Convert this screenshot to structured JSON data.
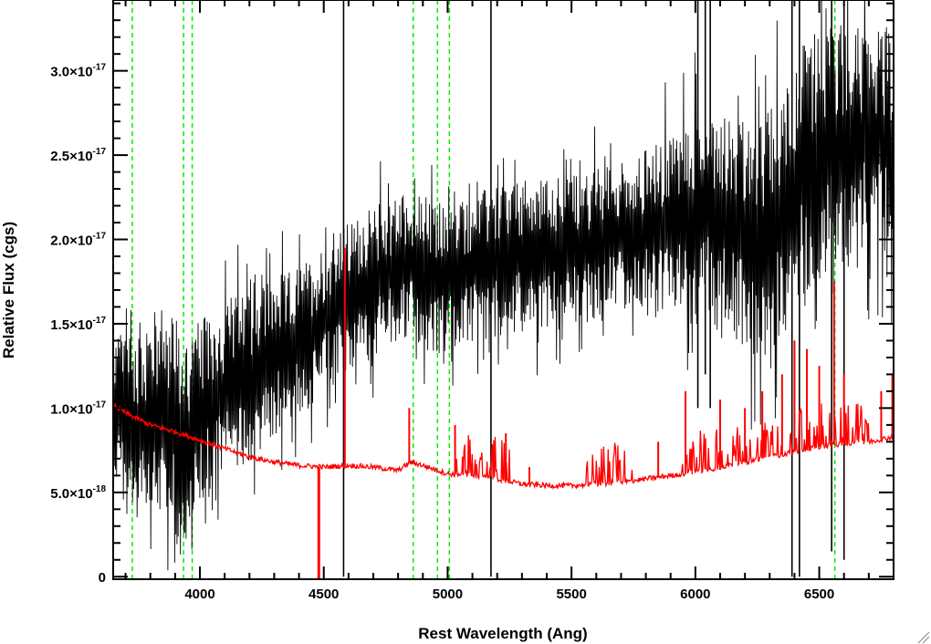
{
  "chart_data": {
    "type": "line",
    "title": "",
    "xlabel": "Rest Wavelength (Ang)",
    "ylabel": "Relative Flux (cgs)",
    "xlim": [
      3650,
      6800
    ],
    "ylim": [
      -1.5e-19,
      3.42e-17
    ],
    "x_ticks": [
      4000,
      4500,
      5000,
      5500,
      6000,
      6500
    ],
    "x_tick_labels": [
      "4000",
      "4500",
      "5000",
      "5500",
      "6000",
      "6500"
    ],
    "y_ticks": [
      {
        "value": 0,
        "base": "0",
        "exp": ""
      },
      {
        "value": 5e-18,
        "base": "5.0×10",
        "exp": "-18"
      },
      {
        "value": 1e-17,
        "base": "1.0×10",
        "exp": "-17"
      },
      {
        "value": 1.5e-17,
        "base": "1.5×10",
        "exp": "-17"
      },
      {
        "value": 2e-17,
        "base": "2.0×10",
        "exp": "-17"
      },
      {
        "value": 2.5e-17,
        "base": "2.5×10",
        "exp": "-17"
      },
      {
        "value": 3e-17,
        "base": "3.0×10",
        "exp": "-17"
      }
    ],
    "reference_lines": {
      "color": "#00ee00",
      "style": "dashed",
      "x": [
        3727,
        3934,
        3969,
        4861,
        4959,
        5007,
        6563
      ]
    },
    "series": [
      {
        "color": "#000000",
        "style": "noisy spectrum",
        "x": [
          3650,
          3750,
          3850,
          3950,
          4050,
          4150,
          4250,
          4350,
          4450,
          4550,
          4650,
          4750,
          4850,
          4950,
          5050,
          5150,
          5250,
          5350,
          5450,
          5550,
          5650,
          5750,
          5850,
          5950,
          6050,
          6150,
          6250,
          6350,
          6450,
          6550,
          6650,
          6750,
          6800
        ],
        "y": [
          1e-17,
          9e-18,
          9.5e-18,
          8e-18,
          1.05e-17,
          1.15e-17,
          1.25e-17,
          1.35e-17,
          1.45e-17,
          1.6e-17,
          1.7e-17,
          1.8e-17,
          1.85e-17,
          1.75e-17,
          1.8e-17,
          1.85e-17,
          1.9e-17,
          1.9e-17,
          1.95e-17,
          1.95e-17,
          2e-17,
          2.05e-17,
          2.05e-17,
          2.1e-17,
          2.15e-17,
          2.1e-17,
          1.9e-17,
          2.2e-17,
          2.45e-17,
          2.55e-17,
          2.6e-17,
          2.6e-17,
          2.55e-17
        ],
        "noise": [
          3e-18,
          4e-18,
          4.5e-18,
          4.5e-18,
          3.5e-18,
          3.5e-18,
          3.5e-18,
          3e-18,
          3e-18,
          3e-18,
          3e-18,
          3e-18,
          3e-18,
          3e-18,
          3e-18,
          3e-18,
          3e-18,
          3e-18,
          3e-18,
          3e-18,
          3e-18,
          3e-18,
          3.5e-18,
          4e-18,
          4.5e-18,
          4.5e-18,
          5e-18,
          5e-18,
          5e-18,
          5e-18,
          4.5e-18,
          4.5e-18,
          4.5e-18
        ],
        "spikes_x": [
          4580,
          5175,
          6010,
          6040,
          6060,
          6390,
          6420,
          6550,
          6600
        ],
        "spikes_y_high": [
          3.42e-17,
          3.42e-17,
          3.42e-17,
          3.42e-17,
          3.42e-17,
          3.42e-17,
          3.42e-17,
          3.42e-17,
          3.42e-17
        ],
        "spikes_y_low": [
          0,
          0,
          1e-17,
          1.2e-17,
          1e-17,
          0,
          0,
          1.5e-18,
          1e-18
        ]
      },
      {
        "color": "#ff0000",
        "style": "error spectrum",
        "x": [
          3650,
          3700,
          3800,
          3900,
          4000,
          4100,
          4200,
          4300,
          4400,
          4500,
          4600,
          4700,
          4800,
          4850,
          4900,
          5000,
          5100,
          5200,
          5300,
          5400,
          5500,
          5600,
          5700,
          5800,
          5900,
          6000,
          6100,
          6200,
          6300,
          6400,
          6500,
          6600,
          6700,
          6800
        ],
        "y": [
          1.02e-17,
          9.7e-18,
          9e-18,
          8.6e-18,
          8.1e-18,
          7.6e-18,
          7.1e-18,
          6.8e-18,
          6.6e-18,
          6.5e-18,
          6.6e-18,
          6.5e-18,
          6.3e-18,
          6.8e-18,
          6.6e-18,
          6.1e-18,
          6e-18,
          5.8e-18,
          5.5e-18,
          5.4e-18,
          5.4e-18,
          5.5e-18,
          5.6e-18,
          5.8e-18,
          6e-18,
          6.2e-18,
          6.5e-18,
          6.8e-18,
          7.1e-18,
          7.4e-18,
          7.7e-18,
          7.9e-18,
          8e-18,
          8.3e-18
        ],
        "emission_x": [
          3650,
          4585,
          4845,
          5030,
          5235,
          5330,
          5850,
          5960,
          6100,
          6200,
          6270,
          6350,
          6400,
          6450,
          6500,
          6560,
          6600,
          6750,
          6795
        ],
        "emission_y": [
          1.4e-17,
          1.95e-17,
          1e-17,
          9e-18,
          8.5e-18,
          6.5e-18,
          8e-18,
          1.1e-17,
          1.05e-17,
          1e-17,
          1.1e-17,
          1.2e-17,
          1.4e-17,
          1.35e-17,
          1.25e-17,
          1.75e-17,
          1.2e-17,
          1.1e-17,
          1.2e-17
        ],
        "absorption_x": [
          4480
        ],
        "absorption_y": [
          -1.5e-19
        ]
      }
    ],
    "grid": false,
    "legend": "none"
  }
}
